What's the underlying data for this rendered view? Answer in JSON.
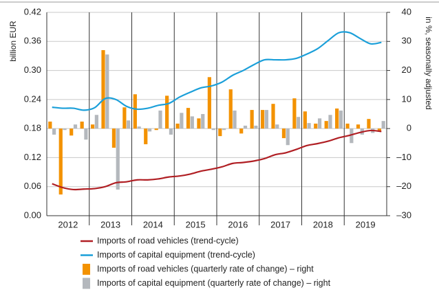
{
  "chart_data": {
    "type": "bar-line",
    "y_label": "billion EUR",
    "y2_label": "in %, seasonally adjusted",
    "x": [
      2012.125,
      2012.375,
      2012.625,
      2012.875,
      2013.125,
      2013.375,
      2013.625,
      2013.875,
      2014.125,
      2014.375,
      2014.625,
      2014.875,
      2015.125,
      2015.375,
      2015.625,
      2015.875,
      2016.125,
      2016.375,
      2016.625,
      2016.875,
      2017.125,
      2017.375,
      2017.625,
      2017.875,
      2018.125,
      2018.375,
      2018.625,
      2018.875,
      2019.125,
      2019.375,
      2019.625,
      2019.875
    ],
    "xlim": [
      2012,
      2020
    ],
    "xticks": [
      {
        "value": 2012.5,
        "label": "2012"
      },
      {
        "value": 2013.5,
        "label": "2013"
      },
      {
        "value": 2014.5,
        "label": "2014"
      },
      {
        "value": 2015.5,
        "label": "2015"
      },
      {
        "value": 2016.5,
        "label": "2016"
      },
      {
        "value": 2017.5,
        "label": "2017"
      },
      {
        "value": 2018.5,
        "label": "2018"
      },
      {
        "value": 2019.5,
        "label": "2019"
      }
    ],
    "xgrid": [
      2013,
      2014,
      2015,
      2016,
      2017,
      2018,
      2019
    ],
    "ylim": [
      0,
      0.42
    ],
    "yticks": [
      {
        "value": 0,
        "label": "0.00"
      },
      0.06,
      0.12,
      0.18,
      {
        "value": 0.24,
        "label": "0.24"
      },
      0.36,
      {
        "value": 0.3,
        "label": "0.30"
      },
      0.42
    ],
    "y2lim": [
      -30,
      40
    ],
    "y2ticks": [
      {
        "value": -30,
        "label": "–30"
      },
      {
        "value": -20,
        "label": "–20"
      },
      {
        "value": -10,
        "label": "–10"
      },
      0,
      10,
      20,
      30,
      40
    ],
    "grid": true,
    "series": [
      {
        "name": "Imports of road vehicles (trend-cycle)",
        "type": "line",
        "color": "#b01e23",
        "values": [
          0.066,
          0.058,
          0.054,
          0.055,
          0.056,
          0.06,
          0.068,
          0.07,
          0.074,
          0.074,
          0.076,
          0.08,
          0.082,
          0.086,
          0.092,
          0.096,
          0.101,
          0.108,
          0.11,
          0.113,
          0.118,
          0.126,
          0.13,
          0.137,
          0.145,
          0.149,
          0.154,
          0.161,
          0.166,
          0.172,
          0.176,
          0.174
        ]
      },
      {
        "name": "Imports of capital equipment (trend-cycle)",
        "type": "line",
        "color": "#1a9fd9",
        "values": [
          0.224,
          0.222,
          0.222,
          0.218,
          0.223,
          0.242,
          0.24,
          0.226,
          0.22,
          0.222,
          0.228,
          0.232,
          0.245,
          0.255,
          0.264,
          0.268,
          0.276,
          0.29,
          0.3,
          0.312,
          0.322,
          0.322,
          0.322,
          0.325,
          0.334,
          0.345,
          0.362,
          0.378,
          0.378,
          0.366,
          0.355,
          0.358
        ]
      },
      {
        "name": "Imports of road vehicles (quarterly rate of change) – right",
        "type": "bar",
        "axis": "y2",
        "color": "#f39200",
        "values": [
          2.4,
          -22.7,
          -2.4,
          2.4,
          1.4,
          27,
          -6.6,
          7.3,
          11.8,
          -5.4,
          -0.5,
          11.3,
          1.7,
          7.1,
          3.5,
          17.7,
          -2.6,
          13.5,
          -1.7,
          6.4,
          6.4,
          8.5,
          -3.3,
          10.4,
          5.9,
          1.7,
          2.6,
          6.9,
          1.7,
          1.4,
          3.3,
          -0.9
        ]
      },
      {
        "name": "Imports of capital equipment (quarterly rate of change) – right",
        "type": "bar",
        "axis": "y2",
        "color": "#b4b8bd",
        "values": [
          -2.1,
          -0.5,
          1.4,
          -3.8,
          4.7,
          25.5,
          -21,
          2.8,
          0.7,
          -1.0,
          6.2,
          -2.1,
          5.4,
          4.2,
          5.0,
          -0.5,
          -0.5,
          6.2,
          1.0,
          1.0,
          6.4,
          1.4,
          -5.7,
          4.0,
          1.9,
          3.5,
          4.7,
          6.2,
          -5.0,
          -2.1,
          -1.5,
          2.6
        ]
      }
    ]
  }
}
